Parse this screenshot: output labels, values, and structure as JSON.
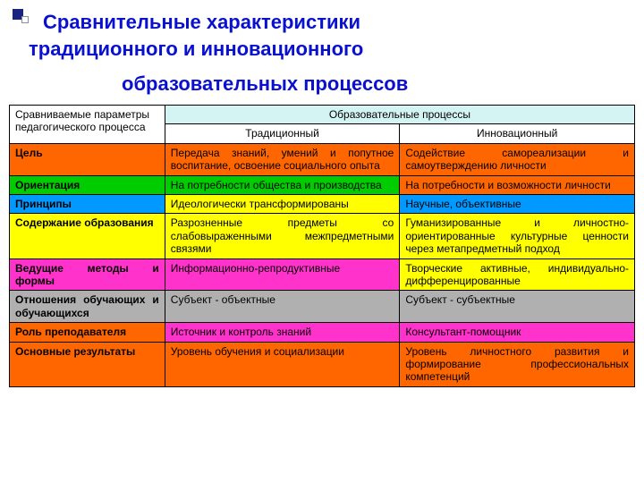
{
  "title": {
    "line1": "Сравнительные характеристики",
    "line2": "традиционного и инновационного",
    "line3": "образовательных процессов",
    "color": "#0a10d0",
    "fontsize": 22
  },
  "table": {
    "type": "table",
    "columns_width": [
      174,
      263,
      263
    ],
    "border_color": "#000000",
    "header": {
      "params_label": "Сравниваемые параметры педагогического процесса",
      "processes_label": "Образовательные процессы",
      "col_traditional": "Традиционный",
      "col_innovative": "Инновационный",
      "proc_bg": "#d4f4f4"
    },
    "rows": [
      {
        "param": "Цель",
        "param_bg": "#ff6600",
        "trad": "Передача знаний, умений и попутное воспитание, освоение социального опыта",
        "trad_bg": "#ff6600",
        "inno": "Содействие самореализации и самоутверждению личности",
        "inno_bg": "#ff6600"
      },
      {
        "param": "Ориентация",
        "param_bg": "#00cc00",
        "trad": "На потребности общества и производства",
        "trad_bg": "#00cc00",
        "inno": "На потребности и возможности личности",
        "inno_bg": "#ff6600"
      },
      {
        "param": "Принципы",
        "param_bg": "#0099ff",
        "trad": "Идеологически трансформированы",
        "trad_bg": "#ffff00",
        "inno": "Научные, объективные",
        "inno_bg": "#0099ff"
      },
      {
        "param": "Содержание образования",
        "param_bg": "#ffff00",
        "trad": "Разрозненные предметы со слабовыраженными межпредметными связями",
        "trad_bg": "#ffff00",
        "inno": "Гуманизированные и личностно-ориентированные культурные ценности через метапредметный подход",
        "inno_bg": "#ffff00"
      },
      {
        "param": "Ведущие методы и формы",
        "param_bg": "#ff33cc",
        "trad": "Информационно-репродуктивные",
        "trad_bg": "#ff33cc",
        "inno": "Творческие активные, индивидуально-дифференцированные",
        "inno_bg": "#ffff00"
      },
      {
        "param": "Отношения обучающих и обучающихся",
        "param_bg": "#b0b0b0",
        "trad": "Субъект - объектные",
        "trad_bg": "#b0b0b0",
        "inno": "Субъект - субъектные",
        "inno_bg": "#b0b0b0"
      },
      {
        "param": "Роль преподавателя",
        "param_bg": "#ff6600",
        "trad": "Источник и контроль знаний",
        "trad_bg": "#ff33cc",
        "inno": "Консультант-помощник",
        "inno_bg": "#ff33cc"
      },
      {
        "param": "Основные результаты",
        "param_bg": "#ff6600",
        "trad": "Уровень обучения и социализации",
        "trad_bg": "#ff6600",
        "inno": "Уровень личностного развития и формирование профессиональных компетенций",
        "inno_bg": "#ff6600"
      }
    ]
  }
}
